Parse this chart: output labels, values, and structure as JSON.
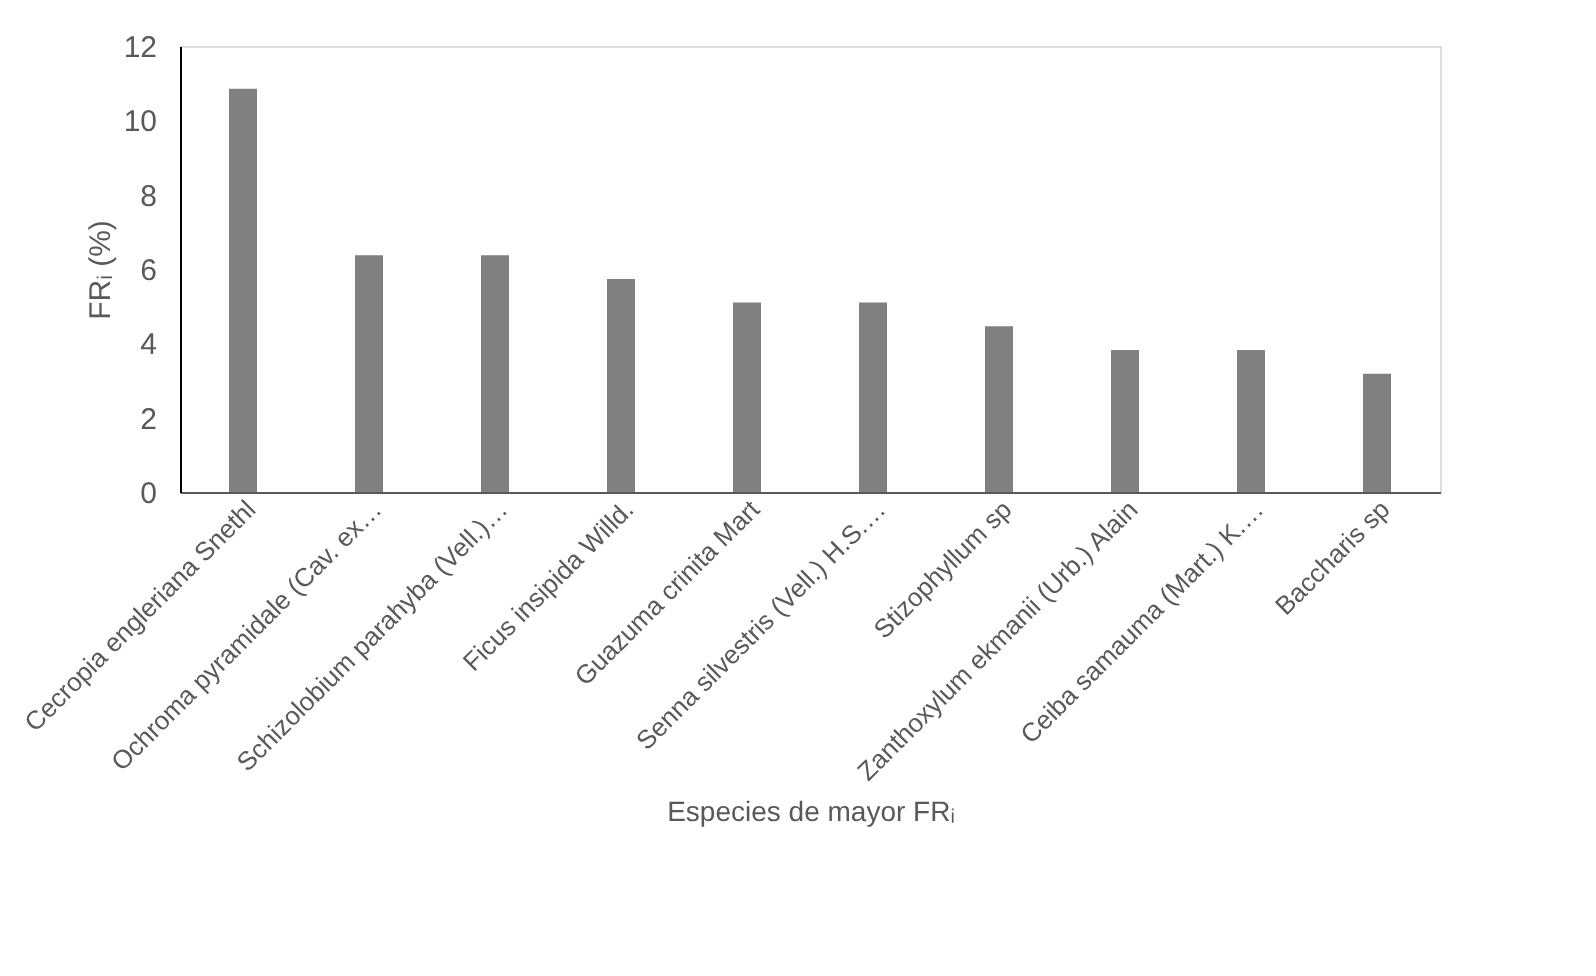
{
  "chart_data": {
    "type": "bar",
    "xlabel": "Especies de mayor FRᵢ",
    "ylabel": "FRᵢ (%)",
    "categories": [
      "Cecropia engleriana Snethl",
      "Ochroma pyramidale (Cav. ex…",
      "Schizolobium parahyba (Vell.)…",
      "Ficus insipida Willd.",
      "Guazuma  crinita   Mart",
      "Senna silvestris (Vell.) H.S.…",
      "Stizophyllum sp",
      "Zanthoxylum ekmanii (Urb.) Alain",
      "Ceiba samauma (Mart.) K.…",
      "Baccharis sp"
    ],
    "values": [
      10.85,
      6.37,
      6.37,
      5.73,
      5.1,
      5.1,
      4.46,
      3.82,
      3.82,
      3.18
    ],
    "color": "#808080",
    "ylim": [
      0,
      12
    ],
    "yticks": [
      0,
      2,
      4,
      6,
      8,
      10,
      12
    ],
    "grid": false
  }
}
